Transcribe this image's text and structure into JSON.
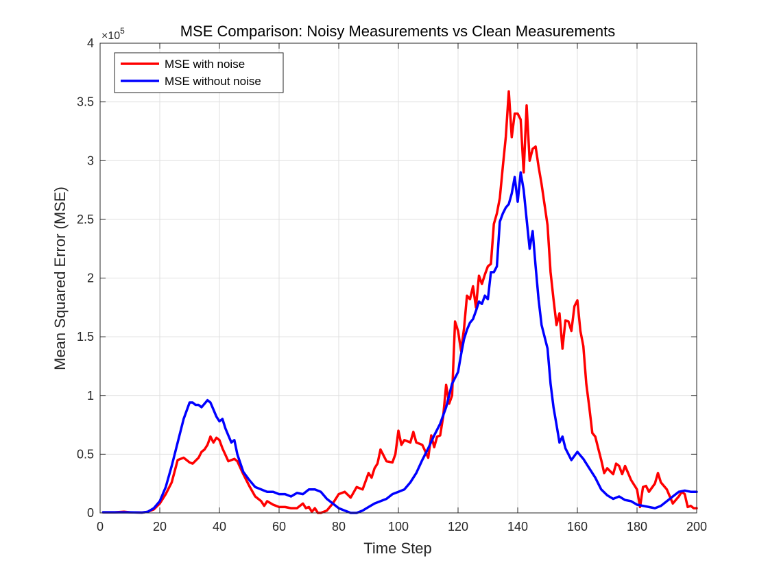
{
  "chart_data": {
    "type": "line",
    "title": "MSE Comparison: Noisy Measurements vs Clean Measurements",
    "xlabel": "Time Step",
    "ylabel": "Mean Squared Error (MSE)",
    "y_multiplier": "×10",
    "y_exponent": "5",
    "xlim": [
      0,
      200
    ],
    "ylim": [
      0,
      4
    ],
    "grid": true,
    "legend_position": "top-left",
    "x_ticks": [
      "0",
      "20",
      "40",
      "60",
      "80",
      "100",
      "120",
      "140",
      "160",
      "180",
      "200"
    ],
    "y_ticks": [
      "0",
      "0.5",
      "1",
      "1.5",
      "2",
      "2.5",
      "3",
      "3.5",
      "4"
    ],
    "series": [
      {
        "name": "MSE with noise",
        "color": "#ff0000",
        "x": [
          1,
          5,
          8,
          10,
          14,
          16,
          18,
          20,
          22,
          24,
          26,
          28,
          30,
          31,
          33,
          34,
          35,
          36,
          37,
          38,
          39,
          40,
          41,
          43,
          45,
          46,
          48,
          50,
          52,
          54,
          55,
          56,
          58,
          60,
          62,
          64,
          66,
          68,
          69,
          70,
          71,
          72,
          73,
          74,
          76,
          78,
          80,
          82,
          84,
          86,
          88,
          90,
          91,
          92,
          93,
          94,
          96,
          98,
          99,
          100,
          101,
          102,
          104,
          105,
          106,
          108,
          110,
          111,
          112,
          113,
          114,
          115,
          116,
          117,
          118,
          119,
          120,
          121,
          122,
          123,
          124,
          125,
          126,
          127,
          128,
          129,
          130,
          131,
          132,
          133,
          134,
          135,
          136,
          137,
          138,
          139,
          140,
          141,
          142,
          143,
          144,
          145,
          146,
          147,
          148,
          150,
          151,
          152,
          153,
          154,
          155,
          156,
          157,
          158,
          159,
          160,
          161,
          162,
          163,
          164,
          165,
          166,
          167,
          168,
          169,
          170,
          172,
          173,
          174,
          175,
          176,
          177,
          178,
          180,
          181,
          182,
          183,
          184,
          186,
          187,
          188,
          190,
          192,
          194,
          195,
          196,
          197,
          198,
          199,
          200
        ],
        "y": [
          0.005,
          0.005,
          0.01,
          0.005,
          0.003,
          0.01,
          0.03,
          0.08,
          0.16,
          0.26,
          0.45,
          0.47,
          0.43,
          0.42,
          0.47,
          0.52,
          0.54,
          0.58,
          0.65,
          0.6,
          0.64,
          0.62,
          0.55,
          0.44,
          0.46,
          0.44,
          0.33,
          0.23,
          0.14,
          0.1,
          0.06,
          0.1,
          0.07,
          0.05,
          0.05,
          0.04,
          0.04,
          0.08,
          0.04,
          0.05,
          0.01,
          0.04,
          0.0,
          0.0,
          0.02,
          0.08,
          0.16,
          0.18,
          0.13,
          0.22,
          0.2,
          0.34,
          0.3,
          0.38,
          0.42,
          0.54,
          0.44,
          0.43,
          0.5,
          0.7,
          0.58,
          0.62,
          0.6,
          0.69,
          0.6,
          0.58,
          0.47,
          0.66,
          0.56,
          0.65,
          0.66,
          0.82,
          1.09,
          0.93,
          1.0,
          1.63,
          1.55,
          1.38,
          1.57,
          1.85,
          1.82,
          1.93,
          1.75,
          2.02,
          1.95,
          2.03,
          2.1,
          2.12,
          2.46,
          2.55,
          2.68,
          2.95,
          3.2,
          3.59,
          3.2,
          3.4,
          3.4,
          3.35,
          2.9,
          3.47,
          3.0,
          3.1,
          3.12,
          2.95,
          2.8,
          2.45,
          2.05,
          1.82,
          1.6,
          1.7,
          1.4,
          1.64,
          1.63,
          1.55,
          1.76,
          1.81,
          1.55,
          1.42,
          1.1,
          0.9,
          0.68,
          0.65,
          0.55,
          0.45,
          0.34,
          0.38,
          0.33,
          0.42,
          0.4,
          0.33,
          0.4,
          0.34,
          0.28,
          0.2,
          0.05,
          0.22,
          0.23,
          0.18,
          0.25,
          0.34,
          0.26,
          0.2,
          0.08,
          0.14,
          0.18,
          0.16,
          0.05,
          0.06,
          0.04,
          0.04
        ]
      },
      {
        "name": "MSE without noise",
        "color": "#0000ff",
        "x": [
          1,
          5,
          10,
          14,
          16,
          18,
          20,
          22,
          24,
          26,
          28,
          30,
          31,
          32,
          33,
          34,
          35,
          36,
          37,
          38,
          39,
          40,
          41,
          42,
          43,
          44,
          45,
          46,
          48,
          50,
          52,
          54,
          56,
          58,
          60,
          62,
          64,
          66,
          68,
          70,
          72,
          74,
          76,
          78,
          80,
          82,
          84,
          86,
          88,
          90,
          92,
          94,
          96,
          98,
          100,
          102,
          104,
          106,
          108,
          110,
          112,
          114,
          116,
          118,
          120,
          121,
          122,
          123,
          124,
          125,
          126,
          127,
          128,
          129,
          130,
          131,
          132,
          133,
          134,
          135,
          136,
          137,
          138,
          139,
          140,
          141,
          142,
          143,
          144,
          145,
          146,
          147,
          148,
          150,
          151,
          152,
          153,
          154,
          155,
          156,
          158,
          160,
          162,
          164,
          166,
          168,
          170,
          172,
          174,
          176,
          178,
          180,
          182,
          184,
          186,
          188,
          190,
          192,
          194,
          196,
          198,
          200
        ],
        "y": [
          0.005,
          0.005,
          0.005,
          0.003,
          0.01,
          0.04,
          0.1,
          0.22,
          0.4,
          0.6,
          0.8,
          0.94,
          0.94,
          0.92,
          0.92,
          0.9,
          0.93,
          0.96,
          0.94,
          0.88,
          0.82,
          0.78,
          0.8,
          0.72,
          0.66,
          0.6,
          0.62,
          0.5,
          0.35,
          0.28,
          0.22,
          0.2,
          0.18,
          0.18,
          0.16,
          0.16,
          0.14,
          0.17,
          0.16,
          0.2,
          0.2,
          0.18,
          0.12,
          0.08,
          0.04,
          0.02,
          0.0,
          0.0,
          0.02,
          0.05,
          0.08,
          0.1,
          0.12,
          0.16,
          0.18,
          0.2,
          0.26,
          0.34,
          0.45,
          0.55,
          0.66,
          0.76,
          0.9,
          1.1,
          1.2,
          1.35,
          1.48,
          1.56,
          1.62,
          1.65,
          1.72,
          1.8,
          1.78,
          1.85,
          1.82,
          2.05,
          2.05,
          2.1,
          2.48,
          2.55,
          2.6,
          2.63,
          2.72,
          2.86,
          2.65,
          2.9,
          2.75,
          2.5,
          2.25,
          2.4,
          2.1,
          1.82,
          1.6,
          1.4,
          1.1,
          0.9,
          0.75,
          0.6,
          0.65,
          0.55,
          0.45,
          0.52,
          0.46,
          0.38,
          0.3,
          0.2,
          0.15,
          0.12,
          0.14,
          0.11,
          0.1,
          0.07,
          0.06,
          0.05,
          0.04,
          0.06,
          0.1,
          0.14,
          0.18,
          0.19,
          0.18,
          0.18
        ]
      }
    ]
  }
}
